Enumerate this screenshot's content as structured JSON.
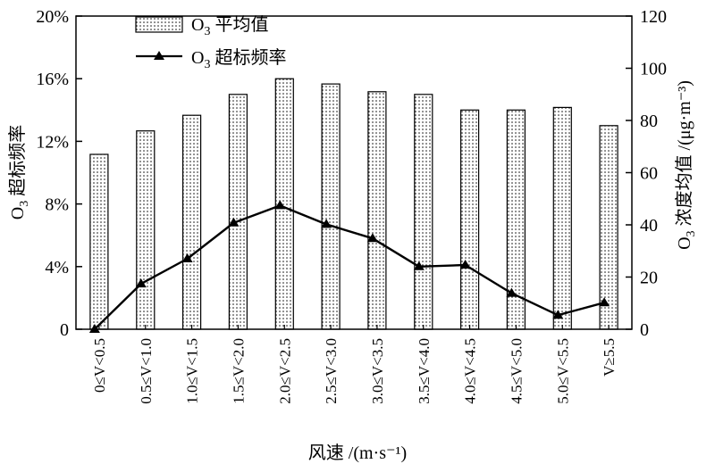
{
  "chart_data": {
    "type": "bar",
    "categories": [
      "0≤V<0.5",
      "0.5≤V<1.0",
      "1.0≤V<1.5",
      "1.5≤V<2.0",
      "2.0≤V<2.5",
      "2.5≤V<3.0",
      "3.0≤V<3.5",
      "3.5≤V<4.0",
      "4.0≤V<4.5",
      "4.5≤V<5.0",
      "5.0≤V<5.5",
      "V≥5.5"
    ],
    "series": [
      {
        "name": "O3 平均值",
        "legend_main": "O",
        "legend_sub": "3",
        "legend_rest": " 平均值",
        "kind": "bar",
        "axis": "right",
        "values": [
          67,
          76,
          82,
          90,
          96,
          94,
          91,
          90,
          84,
          84,
          85,
          78
        ]
      },
      {
        "name": "O3 超标频率",
        "legend_main": "O",
        "legend_sub": "3",
        "legend_rest": " 超标频率",
        "kind": "line",
        "axis": "left",
        "values": [
          0,
          2.9,
          4.5,
          6.8,
          7.9,
          6.7,
          5.8,
          4.0,
          4.1,
          2.3,
          0.9,
          1.7
        ]
      }
    ],
    "xlabel": "风速 /(m·s⁻¹)",
    "ylabel_left": {
      "main": "O",
      "sub": "3",
      "rest": " 超标频率"
    },
    "ylabel_right": {
      "main": "O",
      "sub": "3",
      "rest": " 浓度均值 /(μg·m⁻³)"
    },
    "ylim_left": [
      0,
      20
    ],
    "ylim_right": [
      0,
      120
    ],
    "yticks_left": [
      "0",
      "4%",
      "8%",
      "12%",
      "16%",
      "20%"
    ],
    "yticks_right": [
      "0",
      "20",
      "40",
      "60",
      "80",
      "100",
      "120"
    ],
    "grid": false,
    "legend_position": "top-left",
    "colors": {
      "bar_fill_dots": "#000000",
      "line": "#000000"
    }
  }
}
